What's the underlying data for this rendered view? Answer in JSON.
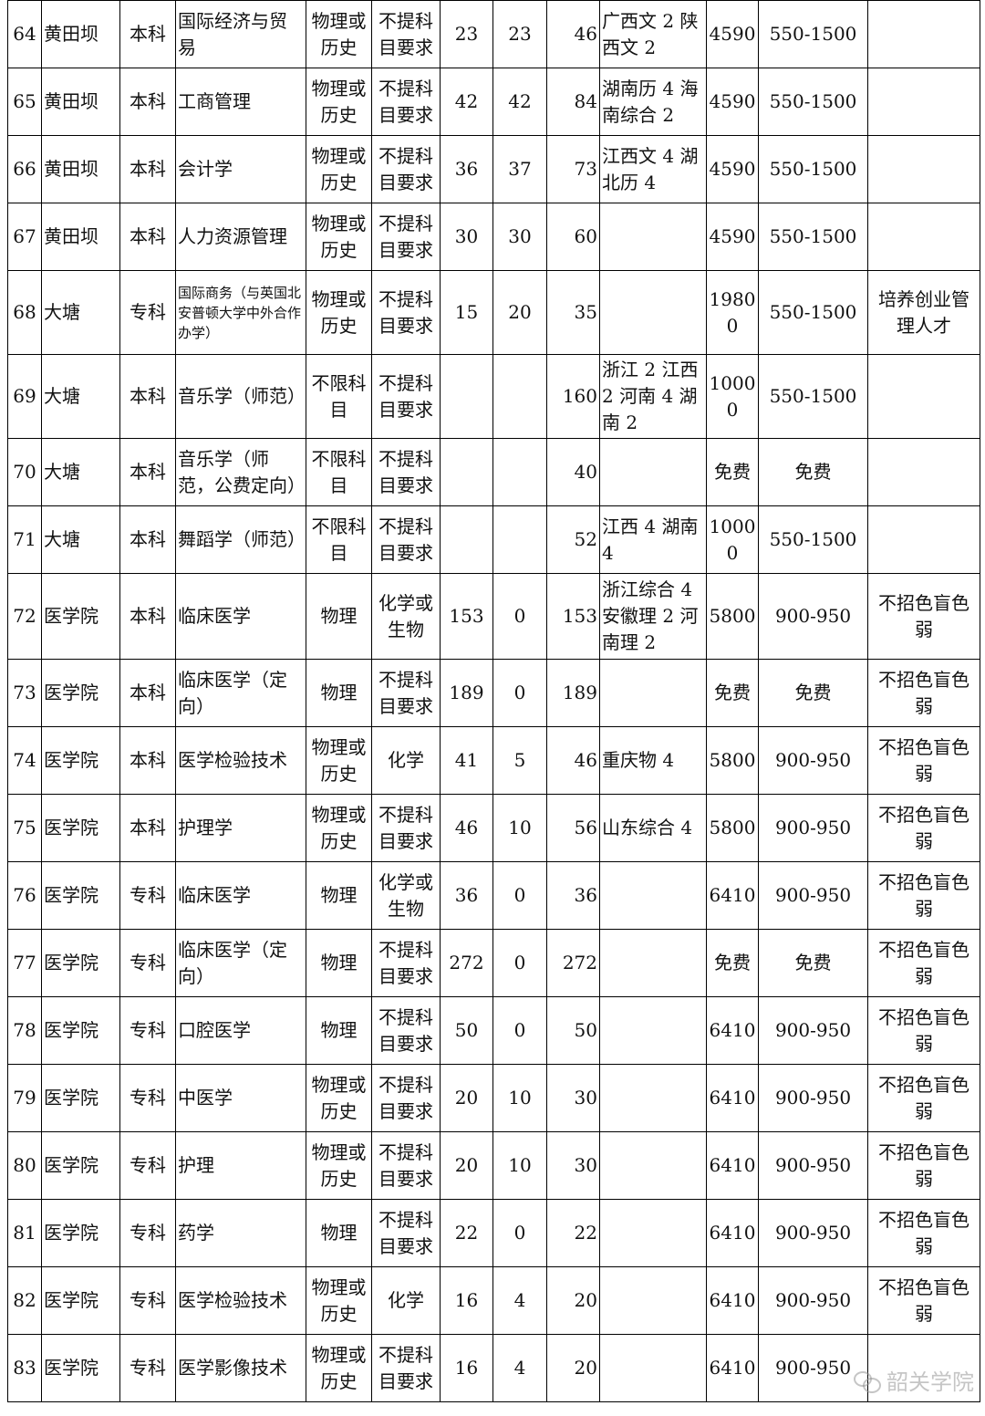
{
  "rows": [
    {
      "no": "64",
      "campus": "黄田坝",
      "level": "本科",
      "major": "国际经济与贸易",
      "first": "物理或历史",
      "second": "不提科目要求",
      "a": "23",
      "b": "23",
      "total": "46",
      "note": "广西文 2 陕西文 2",
      "fee": "4590",
      "dorm": "550-1500",
      "remark": ""
    },
    {
      "no": "65",
      "campus": "黄田坝",
      "level": "本科",
      "major": "工商管理",
      "first": "物理或历史",
      "second": "不提科目要求",
      "a": "42",
      "b": "42",
      "total": "84",
      "note": "湖南历 4 海南综合 2",
      "fee": "4590",
      "dorm": "550-1500",
      "remark": ""
    },
    {
      "no": "66",
      "campus": "黄田坝",
      "level": "本科",
      "major": "会计学",
      "first": "物理或历史",
      "second": "不提科目要求",
      "a": "36",
      "b": "37",
      "total": "73",
      "note": "江西文 4 湖北历 4",
      "fee": "4590",
      "dorm": "550-1500",
      "remark": ""
    },
    {
      "no": "67",
      "campus": "黄田坝",
      "level": "本科",
      "major": "人力资源管理",
      "first": "物理或历史",
      "second": "不提科目要求",
      "a": "30",
      "b": "30",
      "total": "60",
      "note": "",
      "fee": "4590",
      "dorm": "550-1500",
      "remark": ""
    },
    {
      "no": "68",
      "campus": "大塘",
      "level": "专科",
      "major": "国际商务（与英国北安普顿大学中外合作办学）",
      "first": "物理或历史",
      "second": "不提科目要求",
      "a": "15",
      "b": "20",
      "total": "35",
      "note": "",
      "fee": "19800",
      "dorm": "550-1500",
      "remark": "培养创业管理人才"
    },
    {
      "no": "69",
      "campus": "大塘",
      "level": "本科",
      "major": "音乐学（师范）",
      "first": "不限科目",
      "second": "不提科目要求",
      "a": "",
      "b": "",
      "total": "160",
      "note": "浙江 2 江西 2 河南 4 湖南 2",
      "fee": "10000",
      "dorm": "550-1500",
      "remark": ""
    },
    {
      "no": "70",
      "campus": "大塘",
      "level": "本科",
      "major": "音乐学（师范，公费定向）",
      "first": "不限科目",
      "second": "不提科目要求",
      "a": "",
      "b": "",
      "total": "40",
      "note": "",
      "fee": "免费",
      "dorm": "免费",
      "remark": ""
    },
    {
      "no": "71",
      "campus": "大塘",
      "level": "本科",
      "major": "舞蹈学（师范）",
      "first": "不限科目",
      "second": "不提科目要求",
      "a": "",
      "b": "",
      "total": "52",
      "note": "江西 4 湖南 4",
      "fee": "10000",
      "dorm": "550-1500",
      "remark": ""
    },
    {
      "no": "72",
      "campus": "医学院",
      "level": "本科",
      "major": "临床医学",
      "first": "物理",
      "second": "化学或生物",
      "a": "153",
      "b": "0",
      "total": "153",
      "note": "浙江综合 4 安徽理 2 河南理 2",
      "fee": "5800",
      "dorm": "900-950",
      "remark": "不招色盲色弱"
    },
    {
      "no": "73",
      "campus": "医学院",
      "level": "本科",
      "major": "临床医学（定向）",
      "first": "物理",
      "second": "不提科目要求",
      "a": "189",
      "b": "0",
      "total": "189",
      "note": "",
      "fee": "免费",
      "dorm": "免费",
      "remark": "不招色盲色弱"
    },
    {
      "no": "74",
      "campus": "医学院",
      "level": "本科",
      "major": "医学检验技术",
      "first": "物理或历史",
      "second": "化学",
      "a": "41",
      "b": "5",
      "total": "46",
      "note": "重庆物 4",
      "fee": "5800",
      "dorm": "900-950",
      "remark": "不招色盲色弱"
    },
    {
      "no": "75",
      "campus": "医学院",
      "level": "本科",
      "major": "护理学",
      "first": "物理或历史",
      "second": "不提科目要求",
      "a": "46",
      "b": "10",
      "total": "56",
      "note": "山东综合 4",
      "fee": "5800",
      "dorm": "900-950",
      "remark": "不招色盲色弱"
    },
    {
      "no": "76",
      "campus": "医学院",
      "level": "专科",
      "major": "临床医学",
      "first": "物理",
      "second": "化学或生物",
      "a": "36",
      "b": "0",
      "total": "36",
      "note": "",
      "fee": "6410",
      "dorm": "900-950",
      "remark": "不招色盲色弱"
    },
    {
      "no": "77",
      "campus": "医学院",
      "level": "专科",
      "major": "临床医学（定向）",
      "first": "物理",
      "second": "不提科目要求",
      "a": "272",
      "b": "0",
      "total": "272",
      "note": "",
      "fee": "免费",
      "dorm": "免费",
      "remark": "不招色盲色弱"
    },
    {
      "no": "78",
      "campus": "医学院",
      "level": "专科",
      "major": "口腔医学",
      "first": "物理",
      "second": "不提科目要求",
      "a": "50",
      "b": "0",
      "total": "50",
      "note": "",
      "fee": "6410",
      "dorm": "900-950",
      "remark": "不招色盲色弱"
    },
    {
      "no": "79",
      "campus": "医学院",
      "level": "专科",
      "major": "中医学",
      "first": "物理或历史",
      "second": "不提科目要求",
      "a": "20",
      "b": "10",
      "total": "30",
      "note": "",
      "fee": "6410",
      "dorm": "900-950",
      "remark": "不招色盲色弱"
    },
    {
      "no": "80",
      "campus": "医学院",
      "level": "专科",
      "major": "护理",
      "first": "物理或历史",
      "second": "不提科目要求",
      "a": "20",
      "b": "10",
      "total": "30",
      "note": "",
      "fee": "6410",
      "dorm": "900-950",
      "remark": "不招色盲色弱"
    },
    {
      "no": "81",
      "campus": "医学院",
      "level": "专科",
      "major": "药学",
      "first": "物理",
      "second": "不提科目要求",
      "a": "22",
      "b": "0",
      "total": "22",
      "note": "",
      "fee": "6410",
      "dorm": "900-950",
      "remark": "不招色盲色弱"
    },
    {
      "no": "82",
      "campus": "医学院",
      "level": "专科",
      "major": "医学检验技术",
      "first": "物理或历史",
      "second": "化学",
      "a": "16",
      "b": "4",
      "total": "20",
      "note": "",
      "fee": "6410",
      "dorm": "900-950",
      "remark": "不招色盲色弱"
    },
    {
      "no": "83",
      "campus": "医学院",
      "level": "专科",
      "major": "医学影像技术",
      "first": "物理或历史",
      "second": "不提科目要求",
      "a": "16",
      "b": "4",
      "total": "20",
      "note": "",
      "fee": "6410",
      "dorm": "900-950",
      "remark": ""
    }
  ],
  "watermark": {
    "icon": "wechat-icon",
    "text": "韶关学院"
  }
}
